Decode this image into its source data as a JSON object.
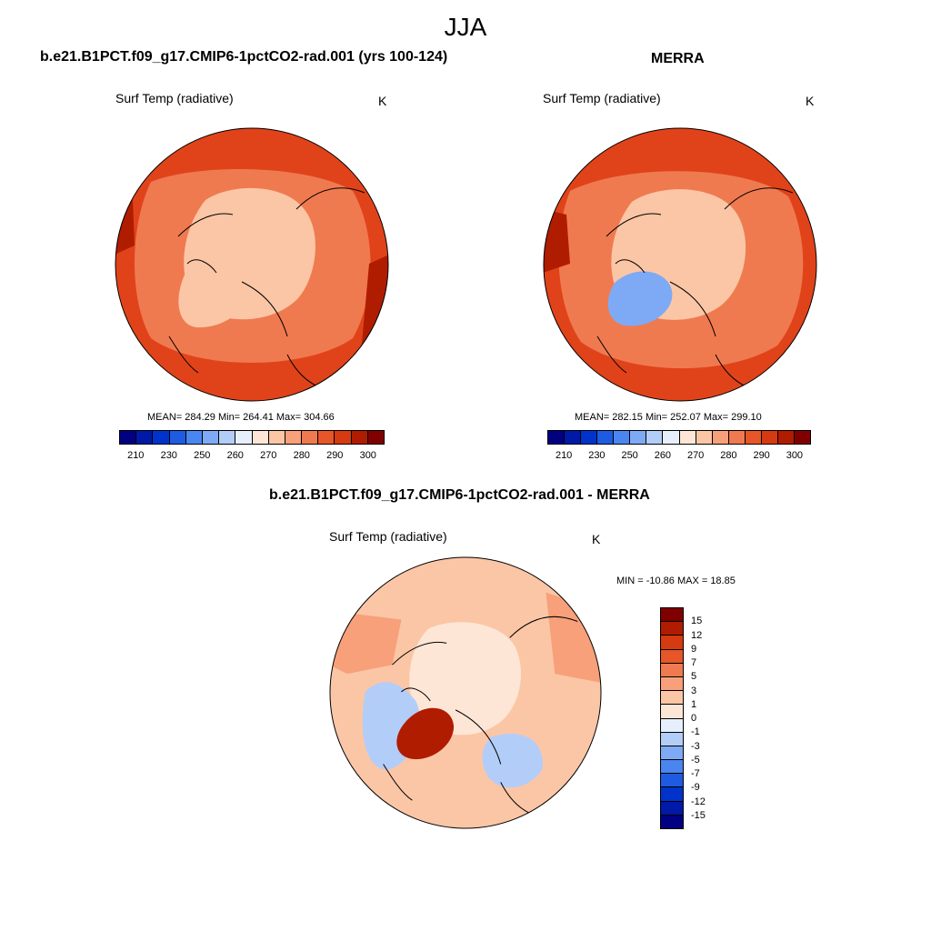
{
  "season": "JJA",
  "panel1": {
    "title": "b.e21.B1PCT.f09_g17.CMIP6-1pctCO2-rad.001 (yrs 100-124)",
    "subtitle": "Surf Temp (radiative)",
    "unit": "K",
    "stats": "MEAN= 284.29  Min= 264.41  Max= 304.66"
  },
  "panel2": {
    "title": "MERRA",
    "subtitle": "Surf Temp (radiative)",
    "unit": "K",
    "stats": "MEAN= 282.15  Min= 252.07  Max= 299.10"
  },
  "panel3": {
    "title": "b.e21.B1PCT.f09_g17.CMIP6-1pctCO2-rad.001 - MERRA",
    "subtitle": "Surf Temp (radiative)",
    "unit": "K",
    "stats": "MIN = -10.86 MAX =  18.85"
  },
  "abs_colorbar": {
    "colors": [
      "#000080",
      "#0019a6",
      "#0033cc",
      "#1f5be0",
      "#4a86ef",
      "#7eaaf5",
      "#b3cdf9",
      "#e6f0fc",
      "#fde6d6",
      "#fbc6a6",
      "#f7a07a",
      "#f07a50",
      "#e65628",
      "#d63a10",
      "#b01c00",
      "#800000"
    ],
    "tick_labels": [
      "210",
      "230",
      "250",
      "260",
      "270",
      "280",
      "290",
      "300"
    ]
  },
  "diff_colorbar": {
    "colors": [
      "#800000",
      "#b01c00",
      "#d63a10",
      "#e65628",
      "#f07a50",
      "#f7a07a",
      "#fbc6a6",
      "#fde6d6",
      "#e6f0fc",
      "#b3cdf9",
      "#7eaaf5",
      "#4a86ef",
      "#1f5be0",
      "#0033cc",
      "#0019a6",
      "#000080"
    ],
    "tick_labels": [
      "15",
      "12",
      "9",
      "7",
      "5",
      "3",
      "1",
      "0",
      "-1",
      "-3",
      "-5",
      "-7",
      "-9",
      "-12",
      "-15"
    ]
  },
  "map_colors": {
    "abs_ocean": "#e0431a",
    "abs_mid": "#f07a50",
    "abs_land": "#e65628",
    "abs_polar": "#fbc6a6",
    "abs_cold": "#7eaaf5",
    "abs_hot": "#b01c00",
    "diff_bg": "#fbc6a6",
    "diff_light": "#fde6d6",
    "diff_pos": "#f7a07a",
    "diff_neg": "#b3cdf9",
    "diff_hot": "#b01c00"
  }
}
